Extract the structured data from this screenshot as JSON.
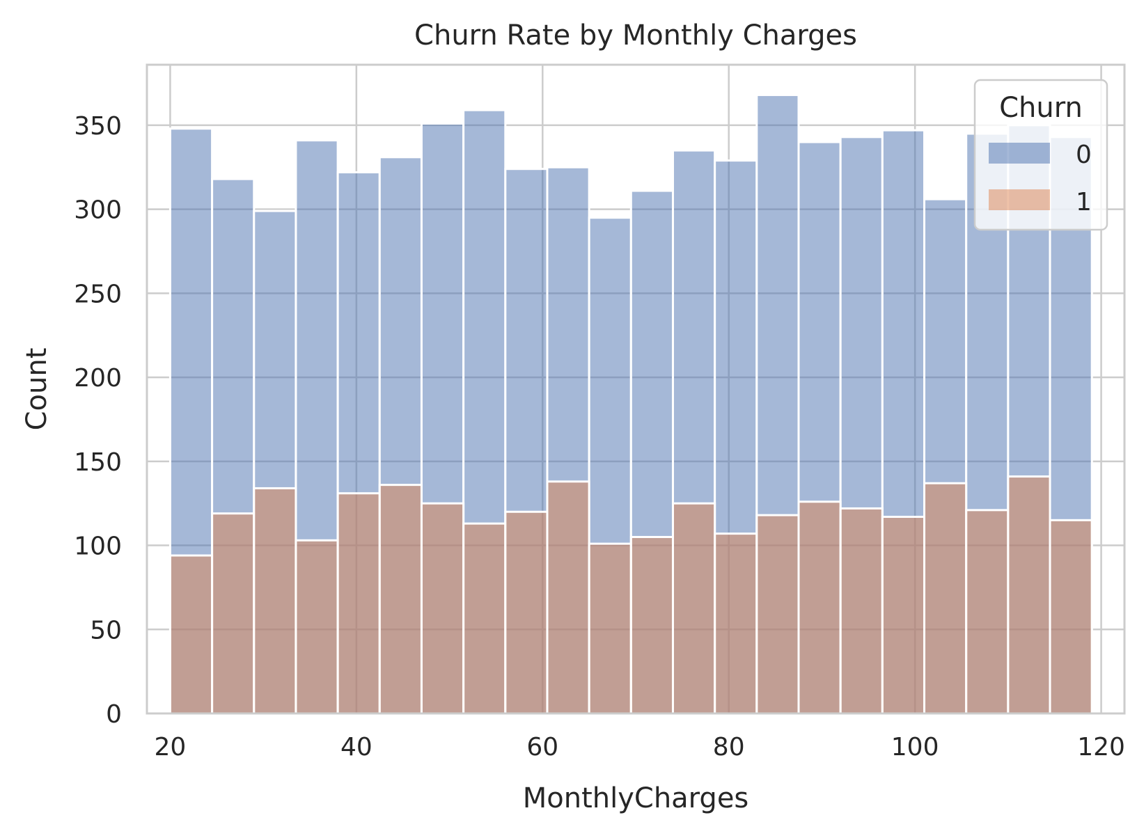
{
  "chart_data": {
    "type": "bar",
    "title": "Churn Rate by Monthly Charges",
    "xlabel": "MonthlyCharges",
    "ylabel": "Count",
    "xlim": [
      17.5,
      122.5
    ],
    "ylim": [
      0,
      386
    ],
    "x_ticks": [
      20,
      40,
      60,
      80,
      100,
      120
    ],
    "y_ticks": [
      0,
      50,
      100,
      150,
      200,
      250,
      300,
      350
    ],
    "grid": true,
    "legend_placement": "top-right",
    "legend_title": "Churn",
    "bin_edges": [
      20.0,
      24.5,
      29.0,
      33.5,
      38.0,
      42.5,
      47.0,
      51.5,
      56.0,
      60.5,
      65.0,
      69.5,
      74.0,
      78.5,
      83.0,
      87.5,
      92.0,
      96.5,
      101.0,
      105.5,
      110.0,
      114.5,
      119.0
    ],
    "series": [
      {
        "name": "0",
        "color": "#4c72b0",
        "values": [
          348,
          318,
          299,
          341,
          322,
          331,
          351,
          359,
          324,
          325,
          295,
          311,
          335,
          329,
          368,
          340,
          343,
          347,
          306,
          345,
          350,
          343
        ]
      },
      {
        "name": "1",
        "color": "#dd8452",
        "values": [
          94,
          119,
          134,
          103,
          131,
          136,
          125,
          113,
          120,
          138,
          101,
          105,
          125,
          107,
          118,
          126,
          122,
          117,
          137,
          121,
          141,
          115
        ]
      }
    ]
  }
}
